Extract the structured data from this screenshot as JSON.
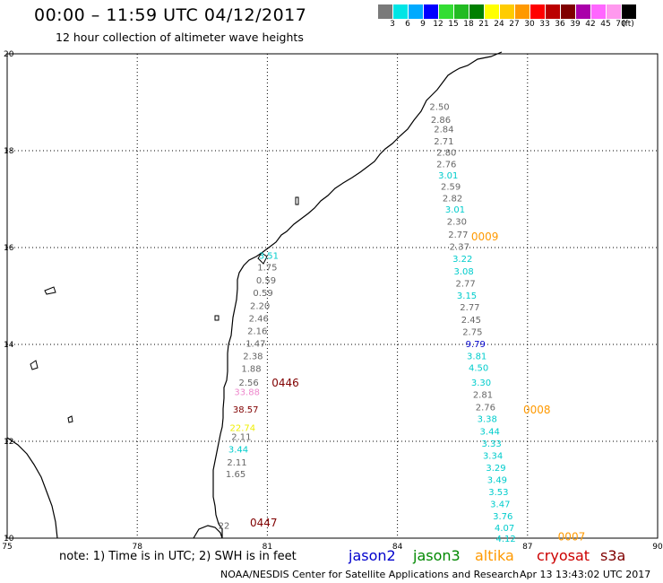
{
  "title": "00:00 – 11:59 UTC 04/12/2017",
  "subtitle": "12 hour collection of altimeter wave heights",
  "colorbar": {
    "colors": [
      "#7a7a7a",
      "#00e5e5",
      "#00aaff",
      "#0000ff",
      "#33dd33",
      "#22bb22",
      "#008000",
      "#ffff00",
      "#ffcc00",
      "#ff9900",
      "#ff0000",
      "#bb0000",
      "#800000",
      "#aa00aa",
      "#ff66ff",
      "#ff99ee",
      "#000000"
    ],
    "labels": [
      "3",
      "6",
      "9",
      "12",
      "15",
      "18",
      "21",
      "24",
      "27",
      "30",
      "33",
      "36",
      "39",
      "42",
      "45",
      "70",
      "(ft)"
    ]
  },
  "chart_data": {
    "type": "scatter",
    "title": "00:00 – 11:59 UTC 04/12/2017",
    "subtitle": "12 hour collection of altimeter wave heights",
    "xlim": [
      75,
      90
    ],
    "ylim": [
      10,
      20
    ],
    "x_ticks": [
      "75",
      "78",
      "81",
      "84",
      "87",
      "90"
    ],
    "y_ticks": [
      "20",
      "18",
      "16",
      "14",
      "12",
      "10"
    ],
    "grid": true,
    "tracks": [
      {
        "color": "#555555",
        "label": "0446",
        "label_color": "#800000",
        "label_x": 81.1,
        "label_y": 13.22
      },
      {
        "color": "#555555",
        "label": "0447",
        "label_color": "#800000",
        "label_x": 80.6,
        "label_y": 10.33
      },
      {
        "color": "#555555",
        "label": "0009",
        "label_color": "#ff9900",
        "label_x": 85.7,
        "label_y": 16.24
      },
      {
        "color": "#555555",
        "label": "0008",
        "label_color": "#ff9900",
        "label_x": 86.9,
        "label_y": 12.67
      },
      {
        "color": "#555555",
        "label": "0007",
        "label_color": "#ff9900",
        "label_x": 87.7,
        "label_y": 10.05
      }
    ],
    "points": [
      {
        "x": 84.97,
        "y": 18.92,
        "v": "2.50",
        "c": "#666666"
      },
      {
        "x": 85.0,
        "y": 18.65,
        "v": "2.86",
        "c": "#666666"
      },
      {
        "x": 85.07,
        "y": 18.45,
        "v": "2.84",
        "c": "#666666"
      },
      {
        "x": 85.07,
        "y": 18.2,
        "v": "2.71",
        "c": "#666666"
      },
      {
        "x": 85.13,
        "y": 17.97,
        "v": "2.80",
        "c": "#666666"
      },
      {
        "x": 85.13,
        "y": 17.73,
        "v": "2.76",
        "c": "#666666"
      },
      {
        "x": 85.17,
        "y": 17.5,
        "v": "3.01",
        "c": "#00cccc"
      },
      {
        "x": 85.23,
        "y": 17.27,
        "v": "2.59",
        "c": "#666666"
      },
      {
        "x": 85.27,
        "y": 17.03,
        "v": "2.82",
        "c": "#666666"
      },
      {
        "x": 85.33,
        "y": 16.8,
        "v": "3.01",
        "c": "#00cccc"
      },
      {
        "x": 85.37,
        "y": 16.55,
        "v": "2.30",
        "c": "#666666"
      },
      {
        "x": 85.4,
        "y": 16.28,
        "v": "2.77",
        "c": "#666666"
      },
      {
        "x": 85.43,
        "y": 16.03,
        "v": "2.37",
        "c": "#666666"
      },
      {
        "x": 85.5,
        "y": 15.78,
        "v": "3.22",
        "c": "#00cccc"
      },
      {
        "x": 85.53,
        "y": 15.52,
        "v": "3.08",
        "c": "#00cccc"
      },
      {
        "x": 85.57,
        "y": 15.27,
        "v": "2.77",
        "c": "#666666"
      },
      {
        "x": 85.6,
        "y": 15.02,
        "v": "3.15",
        "c": "#00cccc"
      },
      {
        "x": 85.67,
        "y": 14.78,
        "v": "2.77",
        "c": "#666666"
      },
      {
        "x": 85.7,
        "y": 14.52,
        "v": "2.45",
        "c": "#666666"
      },
      {
        "x": 85.73,
        "y": 14.27,
        "v": "2.75",
        "c": "#666666"
      },
      {
        "x": 85.8,
        "y": 14.02,
        "v": "9.79",
        "c": "#0000cc"
      },
      {
        "x": 85.83,
        "y": 13.77,
        "v": "3.81",
        "c": "#00cccc"
      },
      {
        "x": 85.87,
        "y": 13.53,
        "v": "4.50",
        "c": "#00cccc"
      },
      {
        "x": 85.93,
        "y": 13.22,
        "v": "3.30",
        "c": "#00cccc"
      },
      {
        "x": 85.97,
        "y": 12.97,
        "v": "2.81",
        "c": "#666666"
      },
      {
        "x": 86.03,
        "y": 12.71,
        "v": "2.76",
        "c": "#666666"
      },
      {
        "x": 86.07,
        "y": 12.47,
        "v": "3.38",
        "c": "#00cccc"
      },
      {
        "x": 86.13,
        "y": 12.21,
        "v": "3.44",
        "c": "#00cccc"
      },
      {
        "x": 86.17,
        "y": 11.96,
        "v": "3.33",
        "c": "#00cccc"
      },
      {
        "x": 86.2,
        "y": 11.71,
        "v": "3.34",
        "c": "#00cccc"
      },
      {
        "x": 86.27,
        "y": 11.46,
        "v": "3.29",
        "c": "#00cccc"
      },
      {
        "x": 86.3,
        "y": 11.21,
        "v": "3.49",
        "c": "#00cccc"
      },
      {
        "x": 86.33,
        "y": 10.96,
        "v": "3.53",
        "c": "#00cccc"
      },
      {
        "x": 86.37,
        "y": 10.71,
        "v": "3.47",
        "c": "#00cccc"
      },
      {
        "x": 86.43,
        "y": 10.46,
        "v": "3.76",
        "c": "#00cccc"
      },
      {
        "x": 86.47,
        "y": 10.22,
        "v": "4.07",
        "c": "#00cccc"
      },
      {
        "x": 86.5,
        "y": 10.0,
        "v": "4.12",
        "c": "#00cccc"
      },
      {
        "x": 81.03,
        "y": 15.84,
        "v": "3.51",
        "c": "#00cccc"
      },
      {
        "x": 81.0,
        "y": 15.6,
        "v": "1.75",
        "c": "#666666"
      },
      {
        "x": 80.97,
        "y": 15.33,
        "v": "0.59",
        "c": "#666666"
      },
      {
        "x": 80.9,
        "y": 15.07,
        "v": "0.59",
        "c": "#666666"
      },
      {
        "x": 80.83,
        "y": 14.81,
        "v": "2.20",
        "c": "#666666"
      },
      {
        "x": 80.8,
        "y": 14.55,
        "v": "2.46",
        "c": "#666666"
      },
      {
        "x": 80.77,
        "y": 14.29,
        "v": "2.16",
        "c": "#666666"
      },
      {
        "x": 80.73,
        "y": 14.03,
        "v": "1.47",
        "c": "#666666"
      },
      {
        "x": 80.67,
        "y": 13.77,
        "v": "2.38",
        "c": "#666666"
      },
      {
        "x": 80.63,
        "y": 13.51,
        "v": "1.88",
        "c": "#666666"
      },
      {
        "x": 80.57,
        "y": 13.22,
        "v": "2.56",
        "c": "#666666"
      },
      {
        "x": 80.53,
        "y": 13.03,
        "v": "33.88",
        "c": "#ee88cc"
      },
      {
        "x": 80.5,
        "y": 12.67,
        "v": "38.57",
        "c": "#800000"
      },
      {
        "x": 80.43,
        "y": 12.29,
        "v": "22.74",
        "c": "#eeee00"
      },
      {
        "x": 80.4,
        "y": 12.1,
        "v": "2.11",
        "c": "#666666"
      },
      {
        "x": 80.33,
        "y": 11.84,
        "v": "3.44",
        "c": "#00cccc"
      },
      {
        "x": 80.3,
        "y": 11.57,
        "v": "2.11",
        "c": "#666666"
      },
      {
        "x": 80.27,
        "y": 11.33,
        "v": "1.65",
        "c": "#666666"
      },
      {
        "x": 80.0,
        "y": 10.27,
        "v": "22",
        "c": "#666666"
      }
    ]
  },
  "footer_note": "note: 1) Time is in UTC; 2) SWH is in feet",
  "legend": [
    {
      "name": "jason2",
      "color": "#0000cc"
    },
    {
      "name": "jason3",
      "color": "#008800"
    },
    {
      "name": "altika",
      "color": "#ff9900"
    },
    {
      "name": "cryosat",
      "color": "#cc0000"
    },
    {
      "name": "s3a",
      "color": "#800000"
    }
  ],
  "credit": "NOAA/NESDIS Center for Satellite Applications and Research",
  "timestamp": "Apr 13 13:43:02 UTC 2017"
}
